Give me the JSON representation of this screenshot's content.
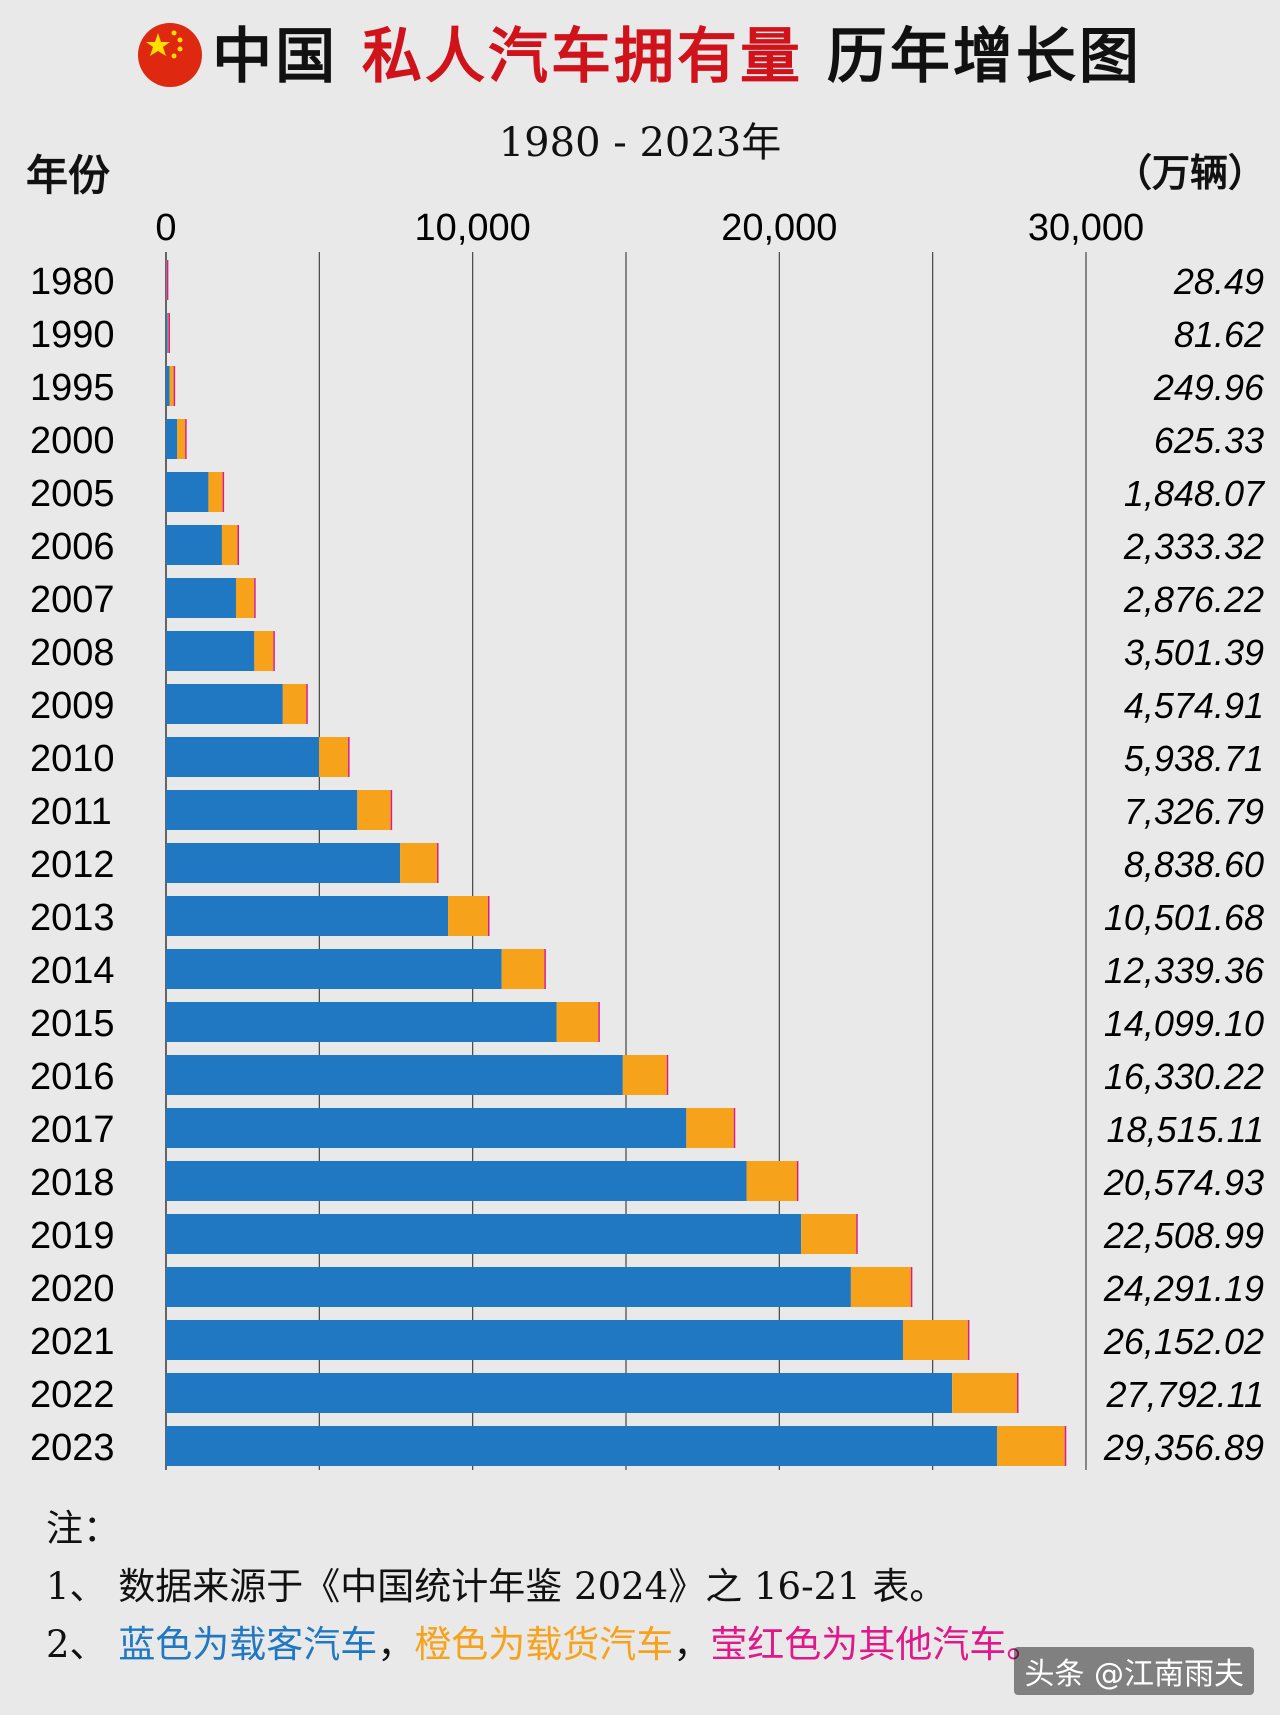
{
  "title": {
    "part1": "中国",
    "part2": "私人汽车拥有量",
    "part3": "历年增长图"
  },
  "subtitle": "1980 - 2023年",
  "y_header": "年份",
  "unit": "（万辆）",
  "chart_data": {
    "type": "bar",
    "orientation": "horizontal",
    "stacked": true,
    "title": "中国 私人汽车拥有量 历年增长图",
    "subtitle": "1980 - 2023年",
    "ylabel": "年份",
    "xlabel": "",
    "unit": "（万辆）",
    "xlim": [
      0,
      30000
    ],
    "x_ticks": [
      "0",
      "10,000",
      "20,000",
      "30,000"
    ],
    "grid": true,
    "categories": [
      "1980",
      "1990",
      "1995",
      "2000",
      "2005",
      "2006",
      "2007",
      "2008",
      "2009",
      "2010",
      "2011",
      "2012",
      "2013",
      "2014",
      "2015",
      "2016",
      "2017",
      "2018",
      "2019",
      "2020",
      "2021",
      "2022",
      "2023"
    ],
    "series": [
      {
        "color": "#1f78c1",
        "values": [
          15,
          55,
          115,
          366,
          1383,
          1824,
          2282,
          2880,
          3808,
          4989,
          6237,
          7637,
          9198,
          10946,
          12737,
          14896,
          16967,
          18930,
          20710,
          22333,
          24032,
          25635,
          27104
        ]
      },
      {
        "color": "#f7a21b",
        "values": [
          13,
          26,
          134,
          258,
          463,
          508,
          593,
          620,
          766,
          949,
          1089,
          1201,
          1302,
          1392,
          1361,
          1433,
          1547,
          1643,
          1797,
          1956,
          2117,
          2115,
          2201
        ]
      },
      {
        "color": "#e0188a",
        "values": [
          0.5,
          0.6,
          1,
          1,
          2,
          2,
          2,
          2,
          2,
          2,
          2,
          2,
          2,
          2,
          2,
          2,
          2,
          2,
          3,
          3,
          3,
          42,
          52
        ]
      }
    ],
    "totals": [
      "28.49",
      "81.62",
      "249.96",
      "625.33",
      "1,848.07",
      "2,333.32",
      "2,876.22",
      "3,501.39",
      "4,574.91",
      "5,938.71",
      "7,326.79",
      "8,838.60",
      "10,501.68",
      "12,339.36",
      "14,099.10",
      "16,330.22",
      "18,515.11",
      "20,574.93",
      "22,508.99",
      "24,291.19",
      "26,152.02",
      "27,792.11",
      "29,356.89"
    ]
  },
  "notes": {
    "head": "注：",
    "line1": "1、 数据来源于《中国统计年鉴 2024》之 16-21 表。",
    "line2_prefix": "2、 ",
    "line2_blue": "蓝色为载客汽车",
    "sep1": "，",
    "line2_orange": "橙色为载货汽车",
    "sep2": "，",
    "line2_magenta": "莹红色为其他汽车。"
  },
  "watermark": "头条 @江南雨夫"
}
